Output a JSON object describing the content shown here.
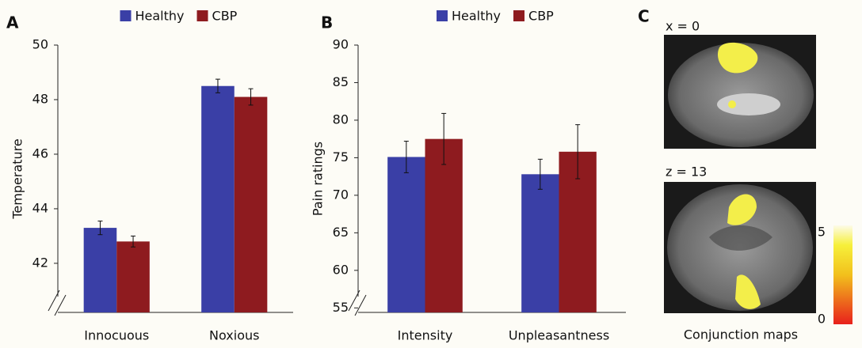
{
  "chart_data": [
    {
      "type": "bar",
      "panel": "A",
      "y_label": "Temperature",
      "categories": [
        "Innocuous",
        "Noxious"
      ],
      "series": [
        {
          "name": "Healthy",
          "color": "#3a3fa6",
          "values": [
            43.3,
            48.5
          ],
          "errors": [
            0.25,
            0.25
          ]
        },
        {
          "name": "CBP",
          "color": "#8e1b1f",
          "values": [
            42.8,
            48.1
          ],
          "errors": [
            0.2,
            0.3
          ]
        }
      ],
      "ylim": [
        40.2,
        50
      ],
      "yticks": [
        42,
        44,
        46,
        48,
        50
      ],
      "axis_break": true,
      "legend": "top"
    },
    {
      "type": "bar",
      "panel": "B",
      "y_label": "Pain ratings",
      "categories": [
        "Intensity",
        "Unpleasantness"
      ],
      "series": [
        {
          "name": "Healthy",
          "color": "#3a3fa6",
          "values": [
            75.1,
            72.8
          ],
          "errors": [
            2.1,
            2.0
          ]
        },
        {
          "name": "CBP",
          "color": "#8e1b1f",
          "values": [
            77.5,
            75.8
          ],
          "errors": [
            3.4,
            3.6
          ]
        }
      ],
      "ylim": [
        54.4,
        90
      ],
      "yticks": [
        55,
        60,
        65,
        70,
        75,
        80,
        85,
        90
      ],
      "axis_break": true,
      "legend": "top"
    }
  ],
  "panel_c": {
    "label": "C",
    "slices": [
      "x = 0",
      "z = 13"
    ],
    "caption": "Conjunction maps",
    "colorbar_ticks": [
      0,
      5
    ]
  }
}
